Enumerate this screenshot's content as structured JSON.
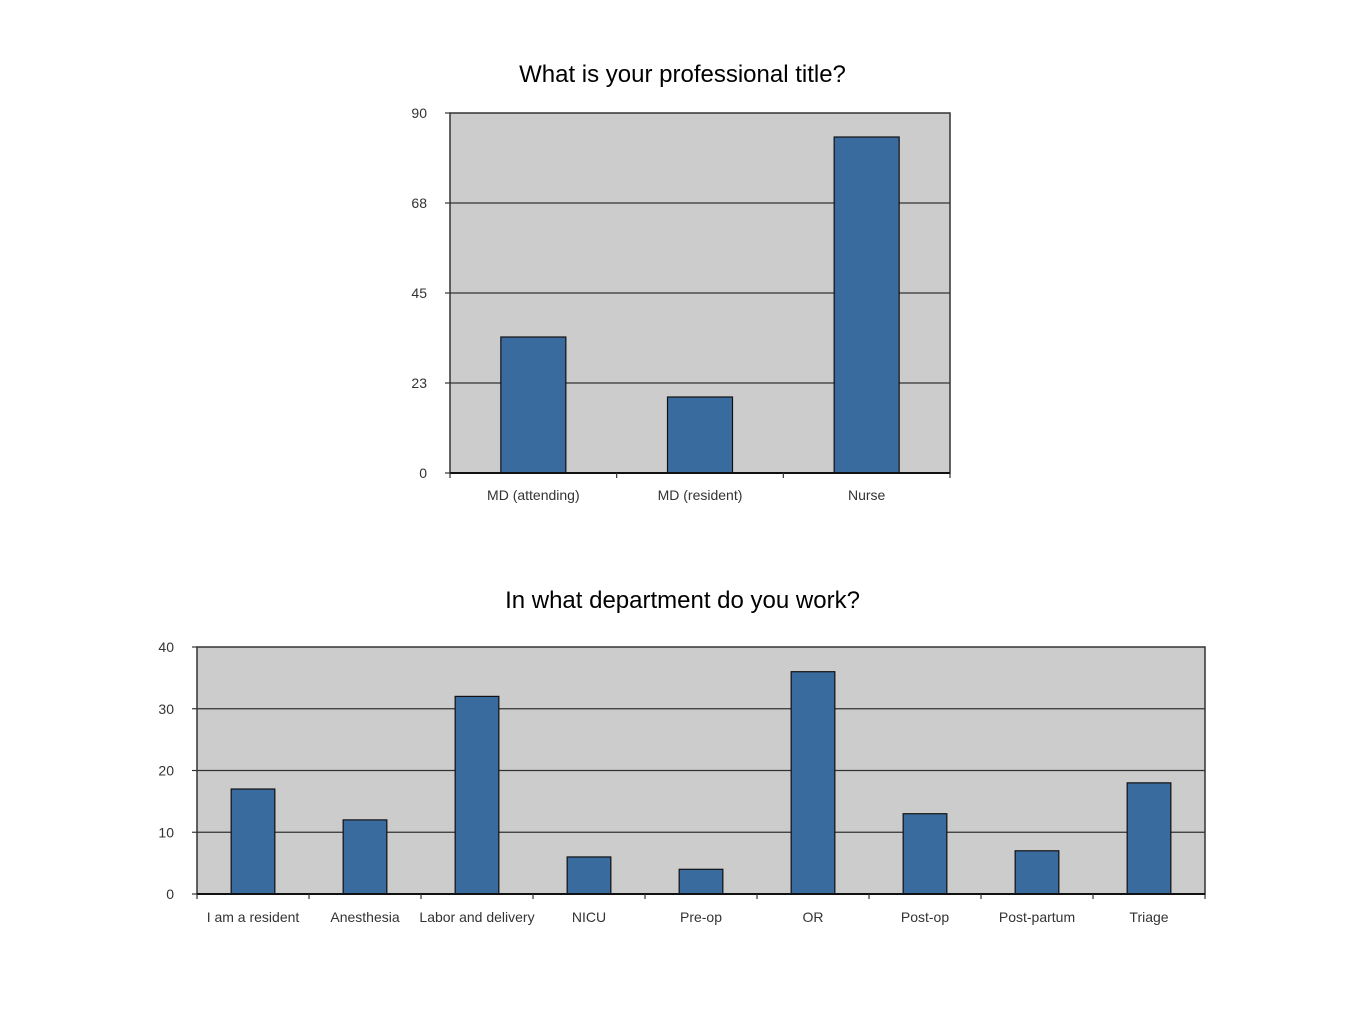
{
  "chart_data": [
    {
      "type": "bar",
      "title": "What is your professional title?",
      "categories": [
        "MD (attending)",
        "MD (resident)",
        "Nurse"
      ],
      "values": [
        34,
        19,
        84
      ],
      "yticks": [
        "0",
        "23",
        "45",
        "68",
        "90"
      ],
      "ylim": [
        0,
        90
      ],
      "grid": true,
      "colors": {
        "bar": "#3a6b9e",
        "plot_bg": "#cccccc"
      }
    },
    {
      "type": "bar",
      "title": "In what department do you work?",
      "categories": [
        "I am a resident",
        "Anesthesia",
        "Labor and delivery",
        "NICU",
        "Pre-op",
        "OR",
        "Post-op",
        "Post-partum",
        "Triage"
      ],
      "values": [
        17,
        12,
        32,
        6,
        4,
        36,
        13,
        7,
        18
      ],
      "yticks": [
        "0",
        "10",
        "20",
        "30",
        "40"
      ],
      "ylim": [
        0,
        40
      ],
      "grid": true,
      "colors": {
        "bar": "#3a6b9e",
        "plot_bg": "#cccccc"
      }
    }
  ]
}
